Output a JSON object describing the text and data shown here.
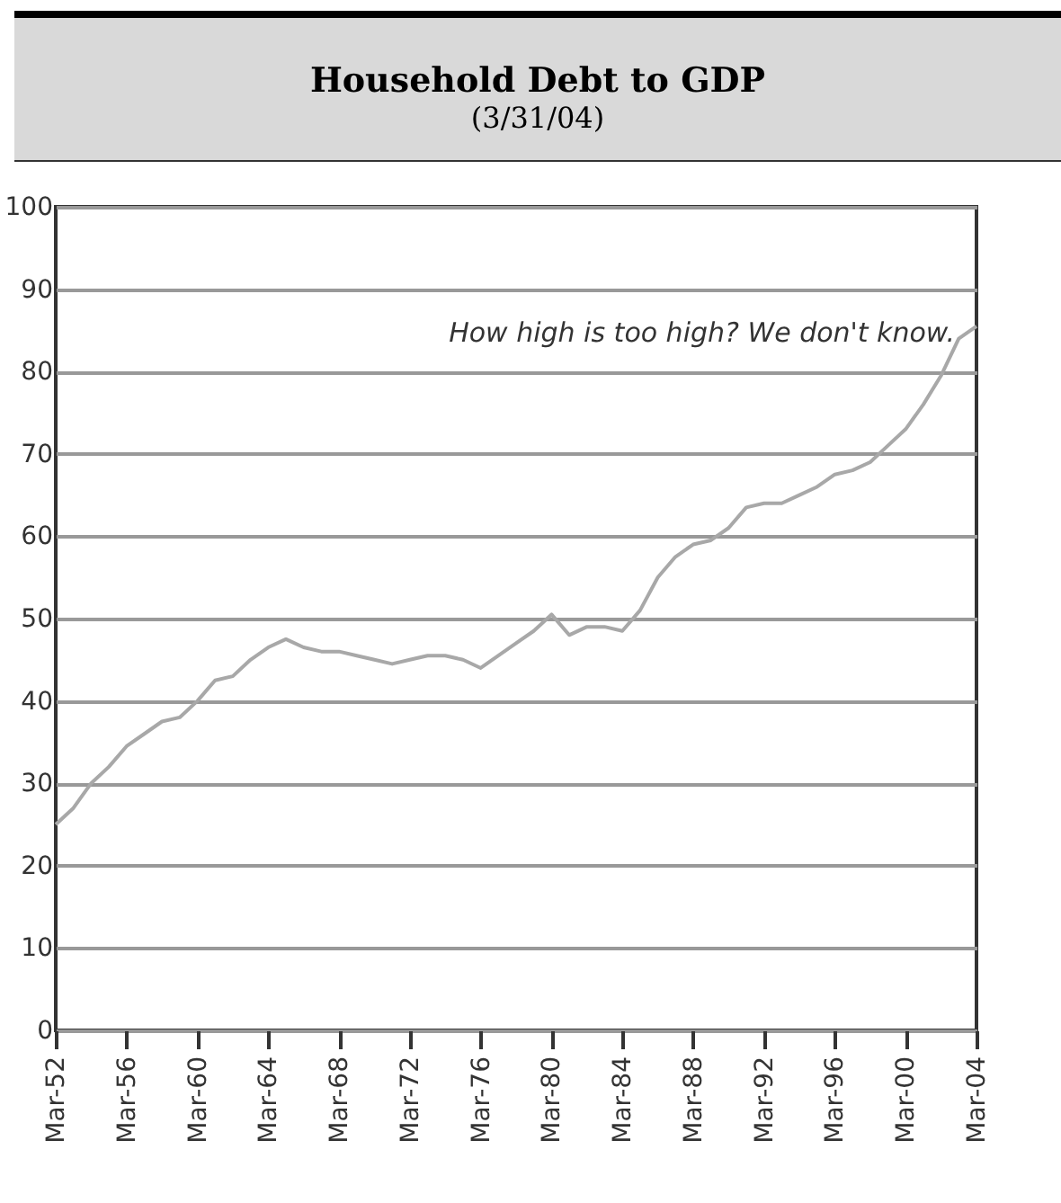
{
  "chart_data": {
    "type": "line",
    "title": "Household Debt to GDP",
    "subtitle": "(3/31/04)",
    "x": [
      "1952-03",
      "1953-03",
      "1954-03",
      "1955-03",
      "1956-03",
      "1957-03",
      "1958-03",
      "1959-03",
      "1960-03",
      "1961-03",
      "1962-03",
      "1963-03",
      "1964-03",
      "1965-03",
      "1966-03",
      "1967-03",
      "1968-03",
      "1969-03",
      "1970-03",
      "1971-03",
      "1972-03",
      "1973-03",
      "1974-03",
      "1975-03",
      "1976-03",
      "1977-03",
      "1978-03",
      "1979-03",
      "1980-03",
      "1981-03",
      "1982-03",
      "1983-03",
      "1984-03",
      "1985-03",
      "1986-03",
      "1987-03",
      "1988-03",
      "1989-03",
      "1990-03",
      "1991-03",
      "1992-03",
      "1993-03",
      "1994-03",
      "1995-03",
      "1996-03",
      "1997-03",
      "1998-03",
      "1999-03",
      "2000-03",
      "2001-03",
      "2002-03",
      "2003-03",
      "2004-03"
    ],
    "series": [
      {
        "color": "#a8a8a8",
        "values": [
          25,
          27,
          30,
          32,
          34.5,
          36,
          37.5,
          38,
          40,
          42.5,
          43,
          45,
          46.5,
          47.5,
          46.5,
          46,
          46,
          45.5,
          45,
          44.5,
          45,
          45.5,
          45.5,
          45,
          44,
          45.5,
          47,
          48.5,
          50.5,
          48,
          49,
          49,
          48.5,
          51,
          55,
          57.5,
          59,
          59.5,
          61,
          63.5,
          64,
          64,
          65,
          66,
          67.5,
          68,
          69,
          71,
          73,
          76,
          79.5,
          84,
          85.5
        ]
      }
    ],
    "xlim": [
      "1952-03",
      "2004-03"
    ],
    "xticks": [
      {
        "value": "1952-03",
        "label": "Mar-52"
      },
      {
        "value": "1956-03",
        "label": "Mar-56"
      },
      {
        "value": "1960-03",
        "label": "Mar-60"
      },
      {
        "value": "1964-03",
        "label": "Mar-64"
      },
      {
        "value": "1968-03",
        "label": "Mar-68"
      },
      {
        "value": "1972-03",
        "label": "Mar-72"
      },
      {
        "value": "1976-03",
        "label": "Mar-76"
      },
      {
        "value": "1980-03",
        "label": "Mar-80"
      },
      {
        "value": "1984-03",
        "label": "Mar-84"
      },
      {
        "value": "1988-03",
        "label": "Mar-88"
      },
      {
        "value": "1992-03",
        "label": "Mar-92"
      },
      {
        "value": "1996-03",
        "label": "Mar-96"
      },
      {
        "value": "2000-03",
        "label": "Mar-00"
      },
      {
        "value": "2004-03",
        "label": "Mar-04"
      }
    ],
    "ylim": [
      0,
      100
    ],
    "yticks": [
      0,
      10,
      20,
      30,
      40,
      50,
      60,
      70,
      80,
      90,
      100
    ],
    "grid": "y",
    "marker": "none",
    "line_style": "solid",
    "annotations": [
      "How high is too high? We don't know."
    ]
  }
}
